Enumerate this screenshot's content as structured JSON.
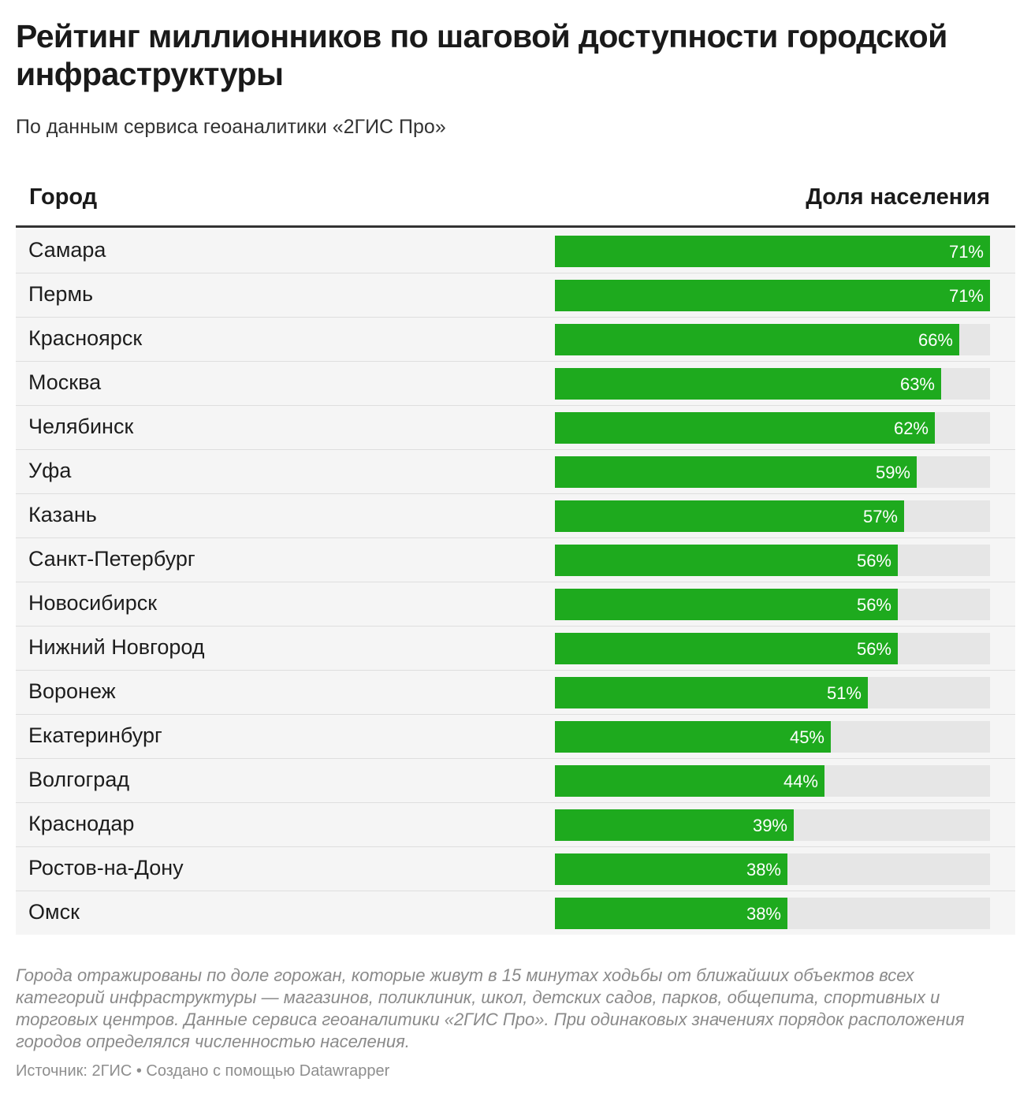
{
  "header": {
    "title": "Рейтинг миллионников по шаговой доступности городской инфраструктуры",
    "subtitle": "По данным сервиса геоаналитики «2ГИС Про»"
  },
  "table": {
    "col_city": "Город",
    "col_share": "Доля населения"
  },
  "colors": {
    "bar": "#1eaa1e",
    "track": "#e6e6e6",
    "row_bg": "#f5f5f5"
  },
  "chart_data": {
    "type": "bar",
    "orientation": "horizontal",
    "xlim": [
      0,
      71
    ],
    "categories": [
      "Самара",
      "Пермь",
      "Красноярск",
      "Москва",
      "Челябинск",
      "Уфа",
      "Казань",
      "Санкт-Петербург",
      "Новосибирск",
      "Нижний Новгород",
      "Воронеж",
      "Екатеринбург",
      "Волгоград",
      "Краснодар",
      "Ростов-на-Дону",
      "Омск"
    ],
    "values": [
      71,
      71,
      66,
      63,
      62,
      59,
      57,
      56,
      56,
      56,
      51,
      45,
      44,
      39,
      38,
      38
    ],
    "labels": [
      "71%",
      "71%",
      "66%",
      "63%",
      "62%",
      "59%",
      "57%",
      "56%",
      "56%",
      "56%",
      "51%",
      "45%",
      "44%",
      "39%",
      "38%",
      "38%"
    ]
  },
  "footer": {
    "notes": "Города отражированы по доле горожан, которые живут в 15 минутах ходьбы от ближайших объектов всех категорий инфраструктуры — магазинов, поликлиник, школ, детских садов, парков, общепита, спортивных и торговых центров. Данные сервиса геоаналитики «2ГИС Про». При одинаковых значениях порядок расположения городов определялся численностью населения.",
    "source": "Источник: 2ГИС • Создано с помощью Datawrapper"
  }
}
